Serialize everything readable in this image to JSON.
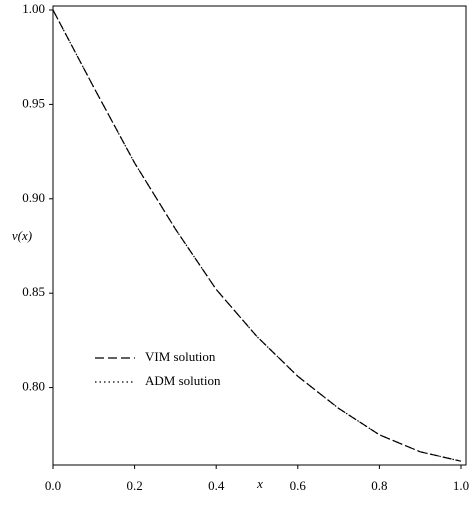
{
  "chart_data": {
    "type": "line",
    "x_label": "x",
    "y_label": "v(x)",
    "x": [
      0,
      0.1,
      0.2,
      0.3,
      0.4,
      0.5,
      0.6,
      0.7,
      0.8,
      0.9,
      1
    ],
    "series": [
      {
        "name": "VIM solution",
        "color": "#000000",
        "style": "dashed",
        "values": [
          1.0,
          0.959,
          0.919,
          0.884,
          0.852,
          0.827,
          0.806,
          0.789,
          0.775,
          0.766,
          0.761
        ]
      },
      {
        "name": "ADM solution",
        "color": "#000000",
        "style": "dotted",
        "values": [
          1.0,
          0.959,
          0.919,
          0.884,
          0.852,
          0.827,
          0.806,
          0.789,
          0.775,
          0.766,
          0.761
        ]
      }
    ],
    "xlim": [
      0,
      1
    ],
    "ylim": [
      0.759,
      1.0
    ],
    "xticks": [
      {
        "value": 0,
        "label": "0.0"
      },
      0.2,
      0.4,
      0.6,
      0.8,
      {
        "value": 1,
        "label": "1.0"
      }
    ],
    "yticks": [
      {
        "value": 0.8,
        "label": "0.80"
      },
      0.85,
      {
        "value": 0.9,
        "label": "0.90"
      },
      0.95,
      {
        "value": 1.0,
        "label": "1.00"
      }
    ],
    "legend": "lower-left",
    "grid": false
  }
}
